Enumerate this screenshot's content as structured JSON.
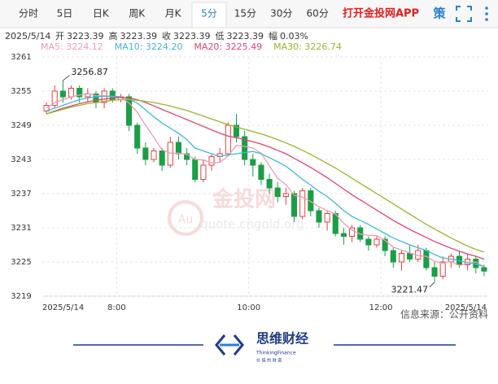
{
  "tabs": [
    "分时",
    "5日",
    "日K",
    "周K",
    "月K",
    "5分",
    "15分",
    "30分",
    "60分"
  ],
  "active_tab": "5分",
  "brand": "打开金投网APP",
  "strategy": "策",
  "info": {
    "date": "2025/5/14",
    "items": [
      {
        "label": "开",
        "value": "3223.39"
      },
      {
        "label": "高",
        "value": "3223.39"
      },
      {
        "label": "收",
        "value": "3223.39"
      },
      {
        "label": "低",
        "value": "3223.39"
      },
      {
        "label": "幅",
        "value": "0.03%"
      }
    ]
  },
  "watermark": {
    "name": "金投网",
    "url": "quote.cngold.org"
  },
  "source": "信息来源：公开资料",
  "logo": {
    "name": "思维财经",
    "english": "ThinkingFinance",
    "slogan": "价 值 的 财 富"
  },
  "chart_data": {
    "type": "candlestick",
    "open": [
      3251.5,
      3252.5,
      3255,
      3254,
      3255.5,
      3254,
      3254.5,
      3253,
      3255,
      3253.5,
      3254,
      3249,
      3245,
      3243,
      3244.5,
      3242,
      3246,
      3244,
      3243,
      3239.5,
      3242,
      3243.5,
      3244,
      3249,
      3247,
      3243,
      3242,
      3239.5,
      3238,
      3236.5,
      3237,
      3233,
      3237.5,
      3234,
      3232,
      3233.5,
      3230,
      3229.5,
      3231,
      3229,
      3228,
      3229,
      3227,
      3225,
      3226.5,
      3225.5,
      3227,
      3224,
      3222.5,
      3225,
      3226,
      3224.5,
      3225.5,
      3224
    ],
    "high": [
      3253,
      3256,
      3256.87,
      3256,
      3256,
      3255.5,
      3255,
      3255.5,
      3255.5,
      3254.5,
      3254.5,
      3249.5,
      3246,
      3245,
      3245,
      3247,
      3247,
      3245,
      3243.5,
      3243,
      3244,
      3245,
      3249.5,
      3251,
      3248,
      3244,
      3242.5,
      3240.5,
      3239,
      3238,
      3237.5,
      3238,
      3238,
      3234.5,
      3234,
      3234,
      3231,
      3231.5,
      3231.5,
      3229.5,
      3229.5,
      3229.5,
      3227.5,
      3227,
      3228,
      3228,
      3227.5,
      3225,
      3226,
      3226.5,
      3227,
      3226.5,
      3226,
      3224.5
    ],
    "low": [
      3251,
      3252,
      3253,
      3253.5,
      3253,
      3253,
      3252,
      3252,
      3253,
      3253,
      3248,
      3244,
      3242,
      3242.5,
      3241,
      3241.5,
      3243,
      3242,
      3239,
      3239,
      3241,
      3242.5,
      3243.5,
      3246,
      3242,
      3240,
      3238.5,
      3237,
      3235.5,
      3235,
      3232,
      3232.5,
      3233,
      3231,
      3230.5,
      3229.5,
      3228,
      3228.5,
      3228.5,
      3227,
      3227.5,
      3226,
      3224,
      3223.5,
      3225,
      3225,
      3223.5,
      3221.47,
      3222,
      3224,
      3224,
      3223.5,
      3223,
      3222.5
    ],
    "close": [
      3252.5,
      3255,
      3254,
      3255.5,
      3254,
      3254.5,
      3253,
      3255,
      3253.5,
      3254,
      3249,
      3245,
      3243,
      3244.5,
      3242,
      3246,
      3244,
      3243,
      3239.5,
      3242,
      3243.5,
      3244,
      3249,
      3247,
      3243,
      3242,
      3239.5,
      3238,
      3236.5,
      3237,
      3233,
      3237.5,
      3234,
      3232,
      3233.5,
      3230,
      3229.5,
      3231,
      3229,
      3228,
      3229,
      3227,
      3225,
      3226.5,
      3225.5,
      3227,
      3224,
      3222.5,
      3225,
      3226,
      3224.5,
      3225.5,
      3224,
      3223.39
    ],
    "up_color": "#e8413d",
    "down_color": "#1a9e47",
    "series": [
      {
        "name": "MA5: 3224.12",
        "color": "#f09ab8",
        "values": [
          3252,
          3253,
          3253.5,
          3254,
          3254.3,
          3254.6,
          3254.2,
          3254.2,
          3254,
          3253.9,
          3252.9,
          3251.3,
          3249,
          3246.9,
          3244.7,
          3244.1,
          3244.1,
          3243.9,
          3243,
          3242.9,
          3242.4,
          3242.5,
          3243.6,
          3245.5,
          3245.3,
          3245,
          3244.1,
          3241.9,
          3239.7,
          3238.6,
          3236.7,
          3236.4,
          3235.6,
          3234.7,
          3234,
          3233.4,
          3231.8,
          3230.6,
          3229.9,
          3229.7,
          3229.6,
          3228.8,
          3227.6,
          3227.1,
          3226.6,
          3226.1,
          3226,
          3225.1,
          3224.8,
          3225.1,
          3224.4,
          3224.7,
          3225,
          3224.12
        ]
      },
      {
        "name": "MA10: 3224.20",
        "color": "#3fb8d6",
        "values": [
          3251.5,
          3252,
          3252.5,
          3253,
          3253.5,
          3253.8,
          3254,
          3254.1,
          3254.1,
          3254,
          3253.6,
          3252.9,
          3251.7,
          3250.5,
          3249.4,
          3248.5,
          3247.6,
          3246.5,
          3245,
          3244.5,
          3244,
          3243.5,
          3243.8,
          3244,
          3244.2,
          3244.4,
          3244,
          3243.3,
          3242.6,
          3241.8,
          3240.7,
          3239.5,
          3238.5,
          3237.4,
          3236.5,
          3235.3,
          3234,
          3233,
          3232.3,
          3231.6,
          3230.8,
          3230,
          3229.2,
          3228.6,
          3228,
          3227.5,
          3227,
          3226.3,
          3225.7,
          3225.5,
          3225.2,
          3224.9,
          3224.6,
          3224.2
        ]
      },
      {
        "name": "MA20: 3225.49",
        "color": "#e0456f",
        "values": [
          3251,
          3251.5,
          3252,
          3252.4,
          3252.8,
          3253.1,
          3253.4,
          3253.6,
          3253.8,
          3253.9,
          3253.8,
          3253.5,
          3253,
          3252.4,
          3251.8,
          3251.2,
          3250.6,
          3250,
          3249.4,
          3248.8,
          3248.2,
          3247.6,
          3247.1,
          3246.8,
          3246.5,
          3246.1,
          3245.7,
          3245.2,
          3244.6,
          3244,
          3243.2,
          3242.4,
          3241.6,
          3240.7,
          3239.8,
          3238.8,
          3237.8,
          3236.8,
          3235.9,
          3235,
          3234.1,
          3233.2,
          3232.3,
          3231.5,
          3230.7,
          3230,
          3229.3,
          3228.6,
          3228,
          3227.4,
          3226.9,
          3226.4,
          3226,
          3225.49
        ]
      },
      {
        "name": "MA30: 3226.74",
        "color": "#9ab32c",
        "values": [
          3251,
          3251.4,
          3251.8,
          3252.2,
          3252.5,
          3252.8,
          3253,
          3253.2,
          3253.4,
          3253.5,
          3253.5,
          3253.4,
          3253.2,
          3253,
          3252.7,
          3252.4,
          3252,
          3251.6,
          3251.1,
          3250.6,
          3250.1,
          3249.6,
          3249.1,
          3248.7,
          3248.3,
          3247.9,
          3247.5,
          3247,
          3246.5,
          3245.9,
          3245.3,
          3244.6,
          3243.9,
          3243.1,
          3242.3,
          3241.5,
          3240.6,
          3239.7,
          3238.8,
          3237.9,
          3237,
          3236.1,
          3235.2,
          3234.3,
          3233.4,
          3232.5,
          3231.6,
          3230.8,
          3230,
          3229.2,
          3228.5,
          3227.8,
          3227.2,
          3226.74
        ]
      }
    ],
    "ylim": [
      3219,
      3261
    ],
    "yticks": [
      3219,
      3225,
      3231,
      3237,
      3243,
      3249,
      3255,
      3261
    ],
    "xlim": [
      -0.5,
      53.5
    ],
    "xticks": [
      {
        "value": 0,
        "label": "2025/5/14"
      },
      {
        "value": 8.5,
        "label": "8:00"
      },
      {
        "value": 24.5,
        "label": "10:00"
      },
      {
        "value": 40.5,
        "label": "12:00"
      },
      {
        "value": 53,
        "label": "2025/5/14"
      }
    ],
    "grid": true,
    "annotations": [
      {
        "label": "3256.87",
        "value": 3256.87,
        "index": 2
      },
      {
        "label": "3221.47",
        "value": 3221.47,
        "index": 47
      }
    ]
  }
}
